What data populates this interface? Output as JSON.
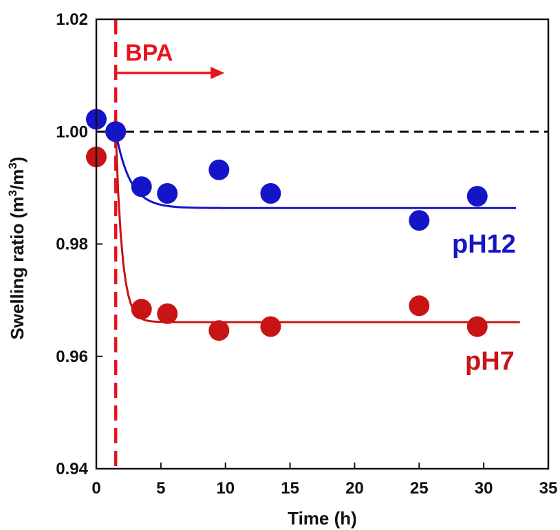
{
  "chart_data": {
    "type": "scatter",
    "xlabel": "Time (h)",
    "ylabel": "Swelling ratio (m3/m3)",
    "ylabel_parts": {
      "pre": "Swelling ratio (m",
      "sup1": "3",
      "mid": "/m",
      "sup2": "3",
      "post": ")"
    },
    "xlim": [
      0,
      35
    ],
    "ylim": [
      0.94,
      1.02
    ],
    "xticks": [
      0,
      5,
      10,
      15,
      20,
      25,
      30,
      35
    ],
    "yticks": [
      0.94,
      0.96,
      0.98,
      1.0,
      1.02
    ],
    "xtick_labels": [
      "0",
      "5",
      "10",
      "15",
      "20",
      "25",
      "30",
      "35"
    ],
    "ytick_labels": [
      "0.94",
      "0.96",
      "0.98",
      "1.00",
      "1.02"
    ],
    "reference_line": {
      "y": 1.0,
      "style": "dashed",
      "color": "#111111"
    },
    "event_line": {
      "x": 1.5,
      "style": "dashed",
      "color": "#e8141c",
      "label": "BPA"
    },
    "series": [
      {
        "name": "pH12",
        "color": "#1515c8",
        "points": [
          {
            "x": 0,
            "y": 1.0022
          },
          {
            "x": 1.5,
            "y": 1.0
          },
          {
            "x": 3.5,
            "y": 0.9902
          },
          {
            "x": 5.5,
            "y": 0.989
          },
          {
            "x": 9.5,
            "y": 0.9932
          },
          {
            "x": 13.5,
            "y": 0.989
          },
          {
            "x": 25,
            "y": 0.9842
          },
          {
            "x": 29.5,
            "y": 0.9885
          }
        ],
        "fit": {
          "x_start": 1.5,
          "x_end": 32.5,
          "y_start": 1.0,
          "y_final": 0.9864,
          "rate": 0.9
        }
      },
      {
        "name": "pH7",
        "color": "#c81414",
        "points": [
          {
            "x": 0,
            "y": 0.9955
          },
          {
            "x": 1.5,
            "y": 1.0
          },
          {
            "x": 3.5,
            "y": 0.9684
          },
          {
            "x": 5.5,
            "y": 0.9676
          },
          {
            "x": 9.5,
            "y": 0.9646
          },
          {
            "x": 13.5,
            "y": 0.9653
          },
          {
            "x": 25,
            "y": 0.969
          },
          {
            "x": 29.5,
            "y": 0.9653
          }
        ],
        "fit": {
          "x_start": 1.5,
          "x_end": 32.8,
          "y_start": 1.0,
          "y_final": 0.9661,
          "rate": 2.0
        }
      }
    ]
  }
}
